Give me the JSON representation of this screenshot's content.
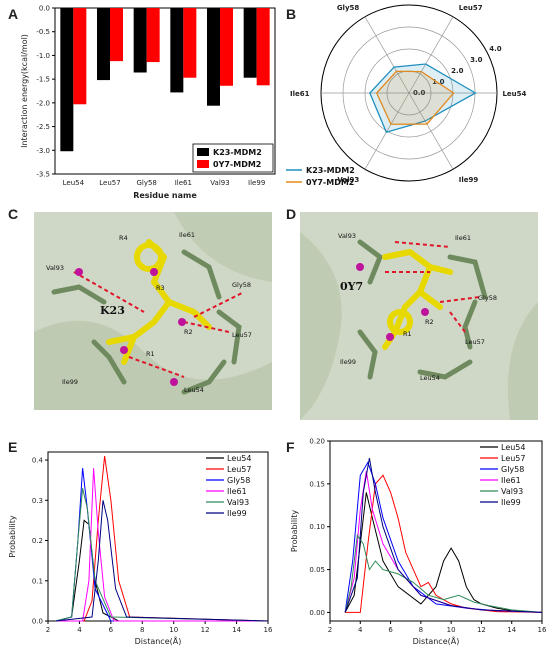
{
  "panels": {
    "A": "A",
    "B": "B",
    "C": "C",
    "D": "D",
    "E": "E",
    "F": "F"
  },
  "colors": {
    "k23": "#000000",
    "0y7": "#ff0000",
    "radar_k23": "#1f8fbf",
    "radar_0y7": "#e08a1e"
  },
  "chart_data": [
    {
      "id": "A",
      "type": "bar",
      "categories": [
        "Leu54",
        "Leu57",
        "Gly58",
        "Ile61",
        "Val93",
        "Ile99"
      ],
      "series": [
        {
          "name": "K23-MDM2",
          "values": [
            -3.02,
            -1.52,
            -1.36,
            -1.78,
            -2.06,
            -1.47
          ]
        },
        {
          "name": "0Y7-MDM2",
          "values": [
            -2.03,
            -1.12,
            -1.14,
            -1.47,
            -1.64,
            -1.63
          ]
        }
      ],
      "xlabel": "Residue name",
      "ylabel": "Interaction energy(kcal/mol)",
      "ylim": [
        -3.5,
        0.0
      ],
      "yticks": [
        "0.0",
        "-0.5",
        "-1.0",
        "-1.5",
        "-2.0",
        "-2.5",
        "-3.0",
        "-3.5"
      ],
      "legend": "bottom-right"
    },
    {
      "id": "B",
      "type": "radar",
      "categories": [
        "Leu54",
        "Leu57",
        "Gly58",
        "Ile61",
        "Val93",
        "Ile99"
      ],
      "series": [
        {
          "name": "K23-MDM2",
          "values": [
            3.02,
            1.52,
            1.36,
            1.78,
            2.06,
            1.47
          ]
        },
        {
          "name": "0Y7-MDM2",
          "values": [
            2.03,
            1.12,
            1.14,
            1.47,
            1.64,
            1.63
          ]
        }
      ],
      "rticks": [
        "0.0",
        "1.0",
        "2.0",
        "3.0",
        "4.0"
      ],
      "rlim": [
        0,
        4
      ],
      "legend": "bottom-left"
    },
    {
      "id": "E",
      "type": "line",
      "xlabel": "Distance(Å)",
      "ylabel": "Probability",
      "xlim": [
        2,
        16
      ],
      "ylim": [
        0,
        0.42
      ],
      "xticks": [
        "2",
        "4",
        "6",
        "8",
        "10",
        "12",
        "14",
        "16"
      ],
      "yticks": [
        "0.0",
        "0.1",
        "0.2",
        "0.3",
        "0.4"
      ],
      "series": [
        {
          "name": "Leu54",
          "color": "#000000",
          "x": [
            2.5,
            3.5,
            4.0,
            4.3,
            4.6,
            5.0,
            5.5,
            6.5,
            16
          ],
          "y": [
            0,
            0.01,
            0.15,
            0.25,
            0.24,
            0.1,
            0.02,
            0,
            0
          ]
        },
        {
          "name": "Leu57",
          "color": "#ff0000",
          "x": [
            2.5,
            4.3,
            4.8,
            5.2,
            5.6,
            6.0,
            6.5,
            7.2,
            16
          ],
          "y": [
            0,
            0,
            0.05,
            0.25,
            0.41,
            0.3,
            0.1,
            0.01,
            0
          ]
        },
        {
          "name": "Gly58",
          "color": "#0000ff",
          "x": [
            2.5,
            3.5,
            3.9,
            4.2,
            4.5,
            5.0,
            6.0,
            16
          ],
          "y": [
            0,
            0.01,
            0.2,
            0.38,
            0.28,
            0.08,
            0,
            0
          ]
        },
        {
          "name": "Ile61",
          "color": "#ff00ff",
          "x": [
            2.5,
            4.2,
            4.6,
            4.9,
            5.2,
            5.6,
            6.2,
            16
          ],
          "y": [
            0,
            0,
            0.1,
            0.38,
            0.22,
            0.06,
            0,
            0
          ]
        },
        {
          "name": "Val93",
          "color": "#2e8b57",
          "x": [
            2.5,
            3.5,
            3.9,
            4.2,
            4.5,
            5.0,
            6.0,
            16
          ],
          "y": [
            0,
            0.01,
            0.2,
            0.33,
            0.28,
            0.1,
            0.01,
            0
          ]
        },
        {
          "name": "Ile99",
          "color": "#000080",
          "x": [
            2.5,
            4.8,
            5.2,
            5.5,
            5.8,
            6.3,
            7.0,
            16
          ],
          "y": [
            0,
            0.01,
            0.15,
            0.3,
            0.25,
            0.08,
            0.01,
            0
          ]
        }
      ],
      "legend": "top-right"
    },
    {
      "id": "F",
      "type": "line",
      "xlabel": "Distance(Å)",
      "ylabel": "Probability",
      "xlim": [
        2,
        16
      ],
      "ylim": [
        -0.01,
        0.2
      ],
      "xticks": [
        "2",
        "4",
        "6",
        "8",
        "10",
        "12",
        "14",
        "16"
      ],
      "yticks": [
        "0.00",
        "0.05",
        "0.10",
        "0.15",
        "0.20"
      ],
      "series": [
        {
          "name": "Leu54",
          "color": "#000000",
          "x": [
            3,
            3.6,
            4.0,
            4.4,
            4.8,
            5.5,
            6.5,
            8,
            9,
            9.5,
            10,
            10.5,
            11,
            11.5,
            12,
            13,
            14,
            16
          ],
          "y": [
            0,
            0.02,
            0.08,
            0.14,
            0.11,
            0.06,
            0.03,
            0.01,
            0.03,
            0.06,
            0.075,
            0.06,
            0.03,
            0.015,
            0.01,
            0.005,
            0.002,
            0
          ]
        },
        {
          "name": "Leu57",
          "color": "#ff0000",
          "x": [
            3,
            4.0,
            4.5,
            5.0,
            5.5,
            6.0,
            6.5,
            7.0,
            8.0,
            8.5,
            9.0,
            10,
            11,
            12,
            13,
            16
          ],
          "y": [
            0,
            0.0,
            0.08,
            0.15,
            0.16,
            0.14,
            0.11,
            0.07,
            0.03,
            0.035,
            0.02,
            0.01,
            0.005,
            0.003,
            0.001,
            0
          ]
        },
        {
          "name": "Gly58",
          "color": "#0000ff",
          "x": [
            3,
            3.5,
            4.0,
            4.5,
            5.0,
            5.5,
            6.5,
            7.5,
            9,
            11,
            13,
            16
          ],
          "y": [
            0,
            0.06,
            0.16,
            0.175,
            0.15,
            0.11,
            0.06,
            0.03,
            0.01,
            0.005,
            0.002,
            0
          ]
        },
        {
          "name": "Ile61",
          "color": "#ff00ff",
          "x": [
            3,
            3.6,
            4.0,
            4.4,
            4.8,
            5.5,
            6.5,
            8,
            10,
            12,
            16
          ],
          "y": [
            0,
            0.04,
            0.12,
            0.165,
            0.12,
            0.08,
            0.05,
            0.02,
            0.008,
            0.003,
            0
          ]
        },
        {
          "name": "Val93",
          "color": "#2e8b57",
          "x": [
            3,
            3.4,
            3.8,
            4.2,
            4.6,
            5.0,
            5.5,
            6.5,
            7.5,
            8.5,
            9.5,
            10.5,
            11.5,
            12.5,
            14,
            16
          ],
          "y": [
            0,
            0.03,
            0.09,
            0.08,
            0.05,
            0.06,
            0.05,
            0.045,
            0.035,
            0.02,
            0.015,
            0.02,
            0.012,
            0.008,
            0.003,
            0
          ]
        },
        {
          "name": "Ile99",
          "color": "#000080",
          "x": [
            3,
            3.8,
            4.2,
            4.6,
            5.0,
            5.5,
            6.5,
            8,
            10,
            12,
            16
          ],
          "y": [
            0,
            0.04,
            0.14,
            0.18,
            0.14,
            0.1,
            0.05,
            0.02,
            0.008,
            0.003,
            0
          ]
        }
      ],
      "legend": "top-right"
    }
  ],
  "structure_C": {
    "labels": [
      "R4",
      "Ile61",
      "Val93",
      "R3",
      "Gly58",
      "K23",
      "R2",
      "Leu57",
      "R1",
      "Ile99",
      "Leu54"
    ]
  },
  "structure_D": {
    "labels": [
      "Val93",
      "Ile61",
      "0Y7",
      "Gly58",
      "R2",
      "R1",
      "Leu57",
      "Ile99",
      "Leu54"
    ]
  }
}
